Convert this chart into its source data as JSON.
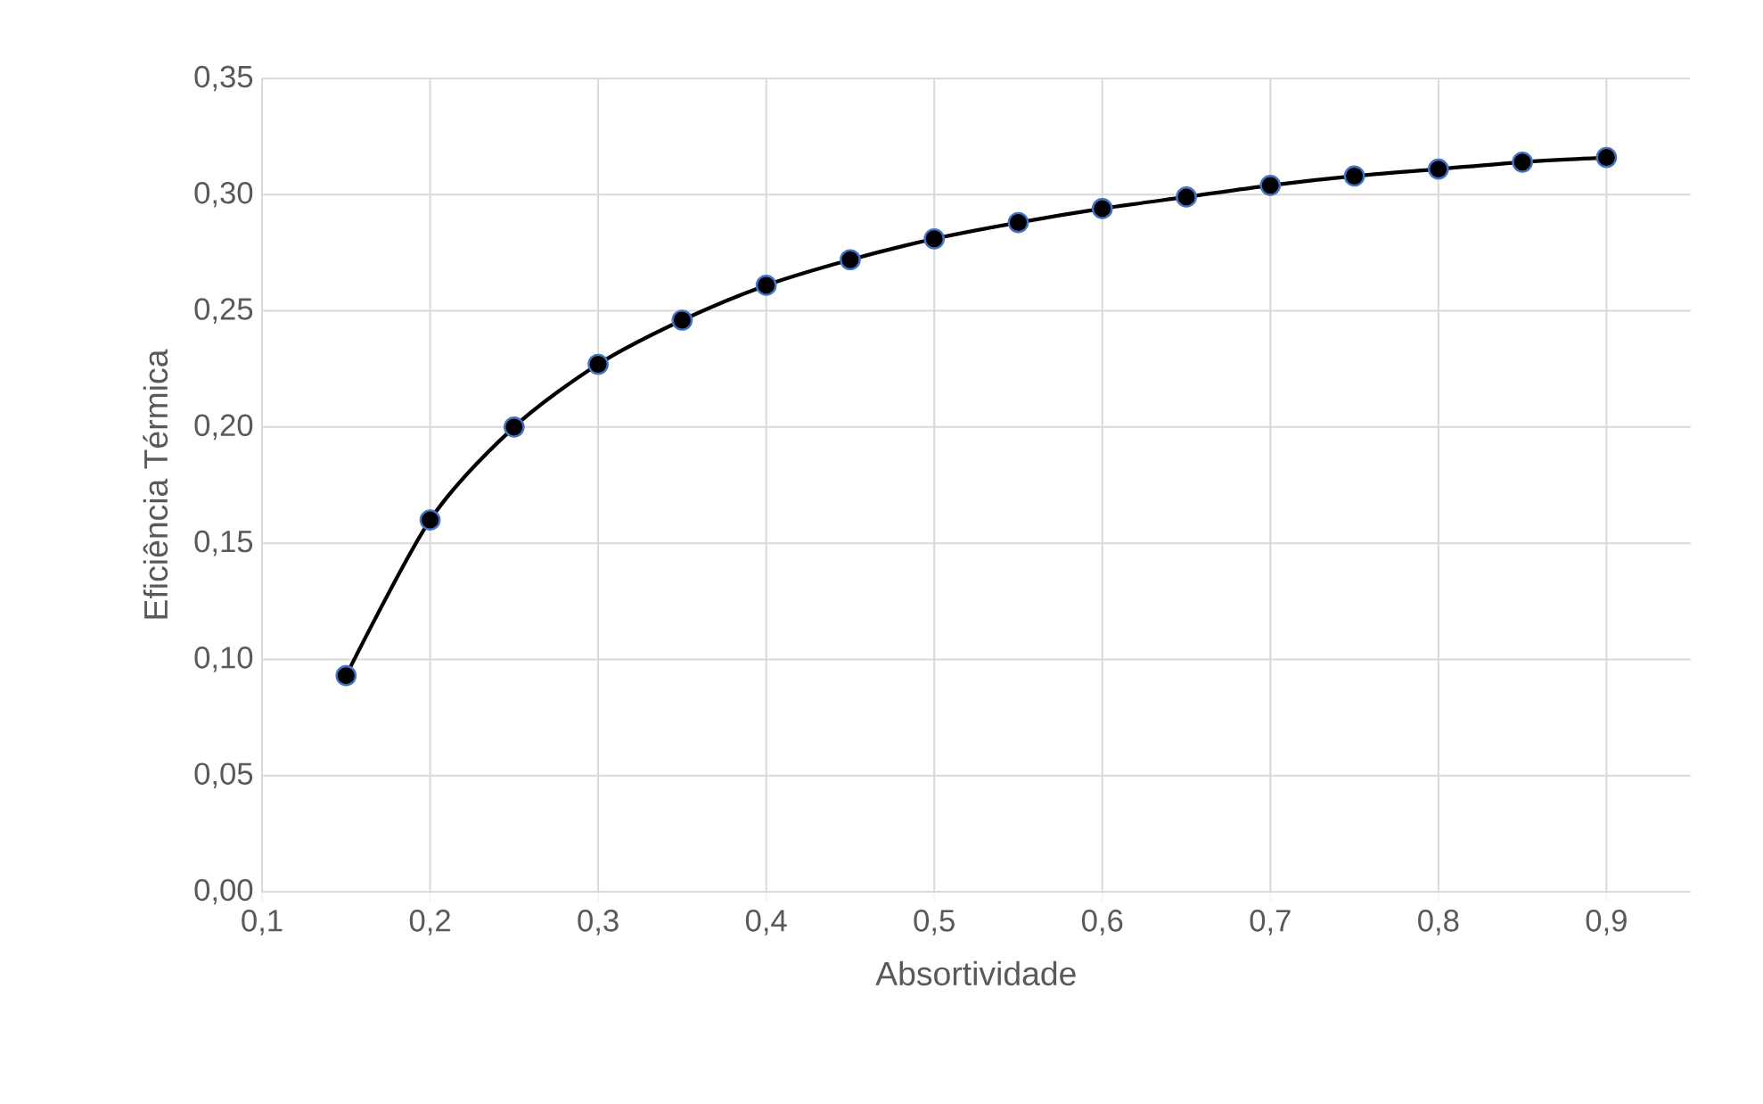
{
  "chart_data": {
    "type": "line",
    "xlabel": "Absortividade",
    "ylabel": "Eficiência Térmica",
    "x": [
      0.15,
      0.2,
      0.25,
      0.3,
      0.35,
      0.4,
      0.45,
      0.5,
      0.55,
      0.6,
      0.65,
      0.7,
      0.75,
      0.8,
      0.85,
      0.9
    ],
    "series": [
      {
        "color": "#000000",
        "values": [
          0.093,
          0.16,
          0.2,
          0.227,
          0.246,
          0.261,
          0.272,
          0.281,
          0.288,
          0.294,
          0.299,
          0.304,
          0.308,
          0.311,
          0.314,
          0.316
        ]
      }
    ],
    "xlim": [
      0.1,
      0.95
    ],
    "ylim": [
      0,
      0.35
    ],
    "xticks": [
      {
        "value": 0.1,
        "label": "0,1"
      },
      {
        "value": 0.2,
        "label": "0,2"
      },
      {
        "value": 0.3,
        "label": "0,3"
      },
      {
        "value": 0.4,
        "label": "0,4"
      },
      {
        "value": 0.5,
        "label": "0,5"
      },
      {
        "value": 0.6,
        "label": "0,6"
      },
      {
        "value": 0.7,
        "label": "0,7"
      },
      {
        "value": 0.8,
        "label": "0,8"
      },
      {
        "value": 0.9,
        "label": "0,9"
      }
    ],
    "yticks": [
      {
        "value": 0,
        "label": "0,00"
      },
      {
        "value": 0.05,
        "label": "0,05"
      },
      {
        "value": 0.1,
        "label": "0,10"
      },
      {
        "value": 0.15,
        "label": "0,15"
      },
      {
        "value": 0.2,
        "label": "0,20"
      },
      {
        "value": 0.25,
        "label": "0,25"
      },
      {
        "value": 0.3,
        "label": "0,30"
      },
      {
        "value": 0.35,
        "label": "0,35"
      }
    ],
    "grid": true,
    "marker": "circle",
    "line_style": "solid"
  }
}
